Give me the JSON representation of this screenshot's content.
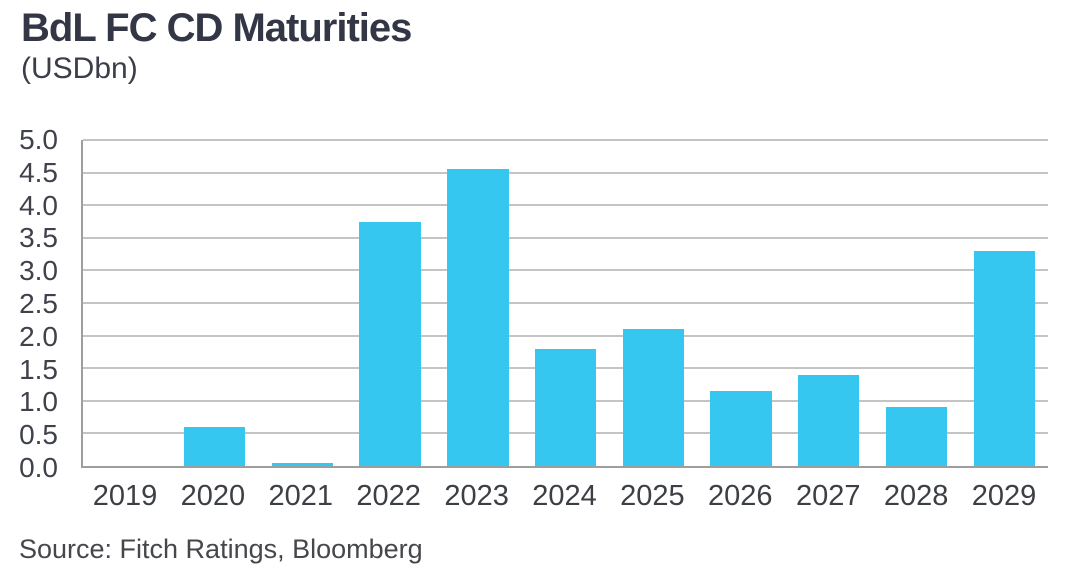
{
  "chart_data": {
    "type": "bar",
    "title": "BdL FC CD Maturities",
    "subtitle": "(USDbn)",
    "source": "Source: Fitch Ratings, Bloomberg",
    "categories": [
      "2019",
      "2020",
      "2021",
      "2022",
      "2023",
      "2024",
      "2025",
      "2026",
      "2027",
      "2028",
      "2029"
    ],
    "values": [
      0,
      0.6,
      0.05,
      3.75,
      4.55,
      1.8,
      2.1,
      1.15,
      1.4,
      0.9,
      3.3
    ],
    "xlabel": "",
    "ylabel": "",
    "ylim": [
      0,
      5
    ],
    "y_tick_labels": [
      "5.0",
      "4.5",
      "4.0",
      "3.5",
      "3.0",
      "2.5",
      "2.0",
      "1.5",
      "1.0",
      "0.5",
      "0.0"
    ],
    "grid": true,
    "legend": "none",
    "colors": {
      "bar": "#36C7F1",
      "title": "#333644",
      "subtitle": "#3B3E49",
      "axis_text": "#3F424A",
      "gridline": "#C4C4C4",
      "axis_line": "#9E9E9E",
      "source_text": "#45474B",
      "background": "#FFFFFF"
    }
  }
}
